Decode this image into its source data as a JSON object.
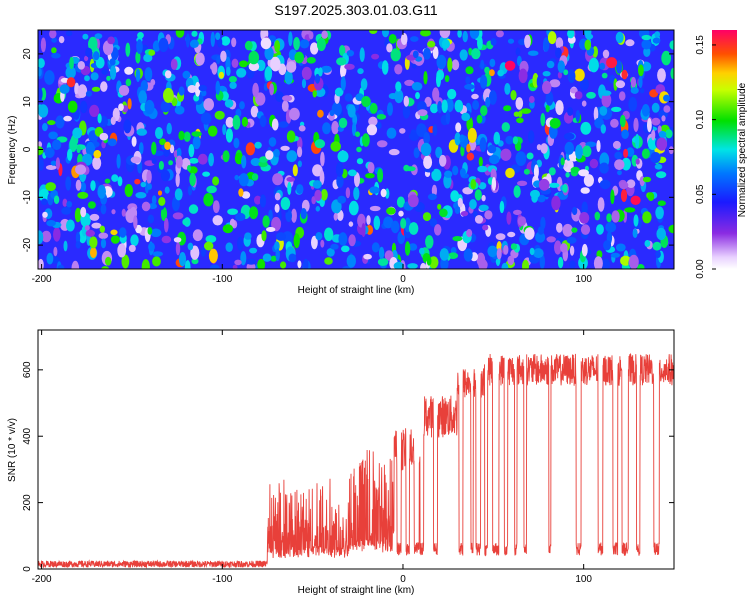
{
  "figure_title": "S197.2025.303.01.03.G11",
  "chart_data": [
    {
      "type": "heatmap",
      "title": "S197.2025.303.01.03.G11",
      "xlabel": "Height of straight line (km)",
      "ylabel": "Frequency (Hz)",
      "xlim": [
        -202,
        150
      ],
      "ylim": [
        -25,
        25
      ],
      "xticks": [
        -200,
        -100,
        0,
        100
      ],
      "yticks": [
        -20,
        -10,
        0,
        10,
        20
      ],
      "colorbar": {
        "label": "Normalized spectral amplitude",
        "range": [
          0,
          0.16
        ],
        "ticks": [
          "0.00",
          "0.05",
          "0.10",
          "0.15"
        ],
        "tick_values": [
          0,
          0.05,
          0.1,
          0.15
        ]
      },
      "description_values": {
        "background_amplitude": 0.04,
        "peak_amplitude": 0.16
      }
    },
    {
      "type": "line",
      "xlabel": "Height of straight line (km)",
      "ylabel": "SNR (10 * v/v)",
      "xlim": [
        -202,
        150
      ],
      "ylim": [
        0,
        720
      ],
      "xticks": [
        -200,
        -100,
        0,
        100
      ],
      "yticks": [
        0,
        200,
        400,
        600
      ],
      "series": [
        {
          "name": "SNR",
          "color": "#e8403a",
          "segments": [
            {
              "x_range": [
                -202,
                -75
              ],
              "level": 15,
              "noise": 10
            },
            {
              "x_range": [
                -75,
                -30
              ],
              "level": 80,
              "noise": 110
            },
            {
              "x_range": [
                -30,
                -5
              ],
              "level": 120,
              "noise": 150
            },
            {
              "x_range": [
                -5,
                10
              ],
              "level": 360,
              "noise": 80
            },
            {
              "x_range": [
                10,
                30
              ],
              "level": 460,
              "noise": 80
            },
            {
              "x_range": [
                30,
                45
              ],
              "level": 560,
              "noise": 60
            },
            {
              "x_range": [
                45,
                150
              ],
              "level": 600,
              "noise": 60
            }
          ],
          "dropout_level": 60
        }
      ]
    }
  ]
}
